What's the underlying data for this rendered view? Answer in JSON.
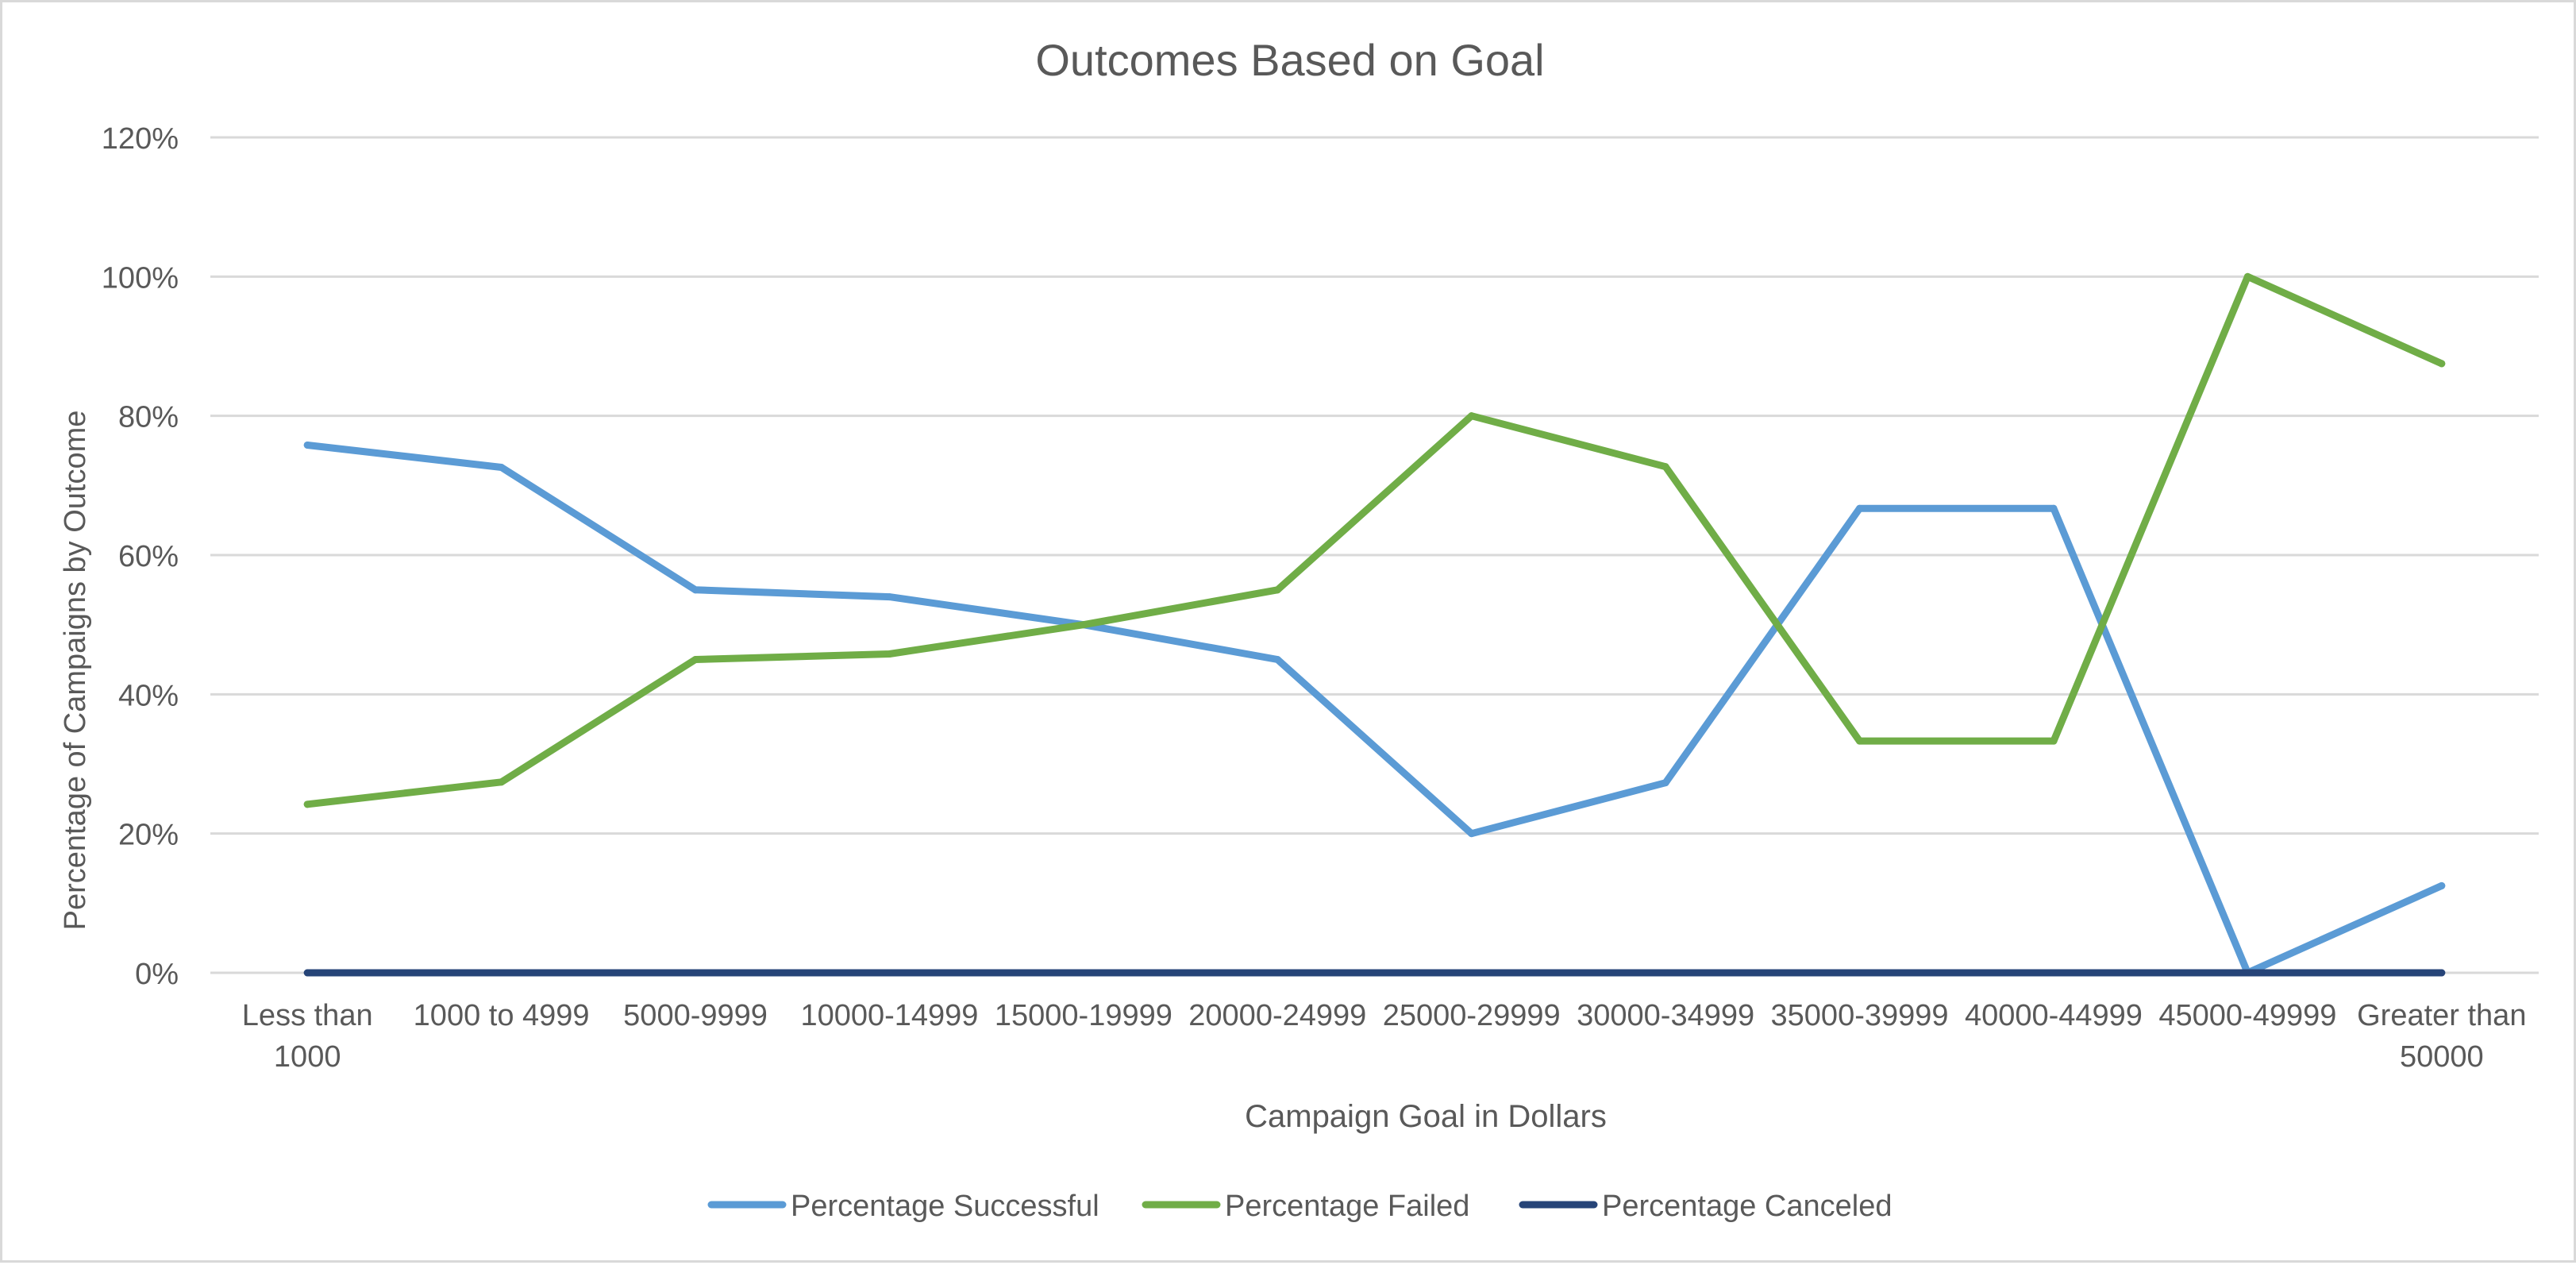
{
  "chart_data": {
    "type": "line",
    "title": "Outcomes Based on Goal",
    "xlabel": "Campaign Goal in Dollars",
    "ylabel": "Percentage of Campaigns by Outcome",
    "categories": [
      [
        "Less than",
        "1000"
      ],
      [
        "1000 to 4999"
      ],
      [
        "5000-9999"
      ],
      [
        "10000-14999"
      ],
      [
        "15000-19999"
      ],
      [
        "20000-24999"
      ],
      [
        "25000-29999"
      ],
      [
        "30000-34999"
      ],
      [
        "35000-39999"
      ],
      [
        "40000-44999"
      ],
      [
        "45000-49999"
      ],
      [
        "Greater than",
        "50000"
      ]
    ],
    "yticks": [
      "0%",
      "20%",
      "40%",
      "60%",
      "80%",
      "100%",
      "120%"
    ],
    "ylim": [
      0,
      120
    ],
    "grid": true,
    "legend": "bottom",
    "series": [
      {
        "name": "Percentage Successful",
        "color": "#5b9bd5",
        "values": [
          75.8,
          72.6,
          55.0,
          54.0,
          50.0,
          45.0,
          20.0,
          27.3,
          66.7,
          66.7,
          0,
          12.5
        ]
      },
      {
        "name": "Percentage Failed",
        "color": "#70ad47",
        "values": [
          24.2,
          27.4,
          45.0,
          45.8,
          50.0,
          55.0,
          80.0,
          72.7,
          33.3,
          33.3,
          100.0,
          87.5
        ]
      },
      {
        "name": "Percentage Canceled",
        "color": "#264478",
        "values": [
          0,
          0,
          0,
          0,
          0,
          0,
          0,
          0,
          0,
          0,
          0,
          0
        ]
      }
    ]
  }
}
